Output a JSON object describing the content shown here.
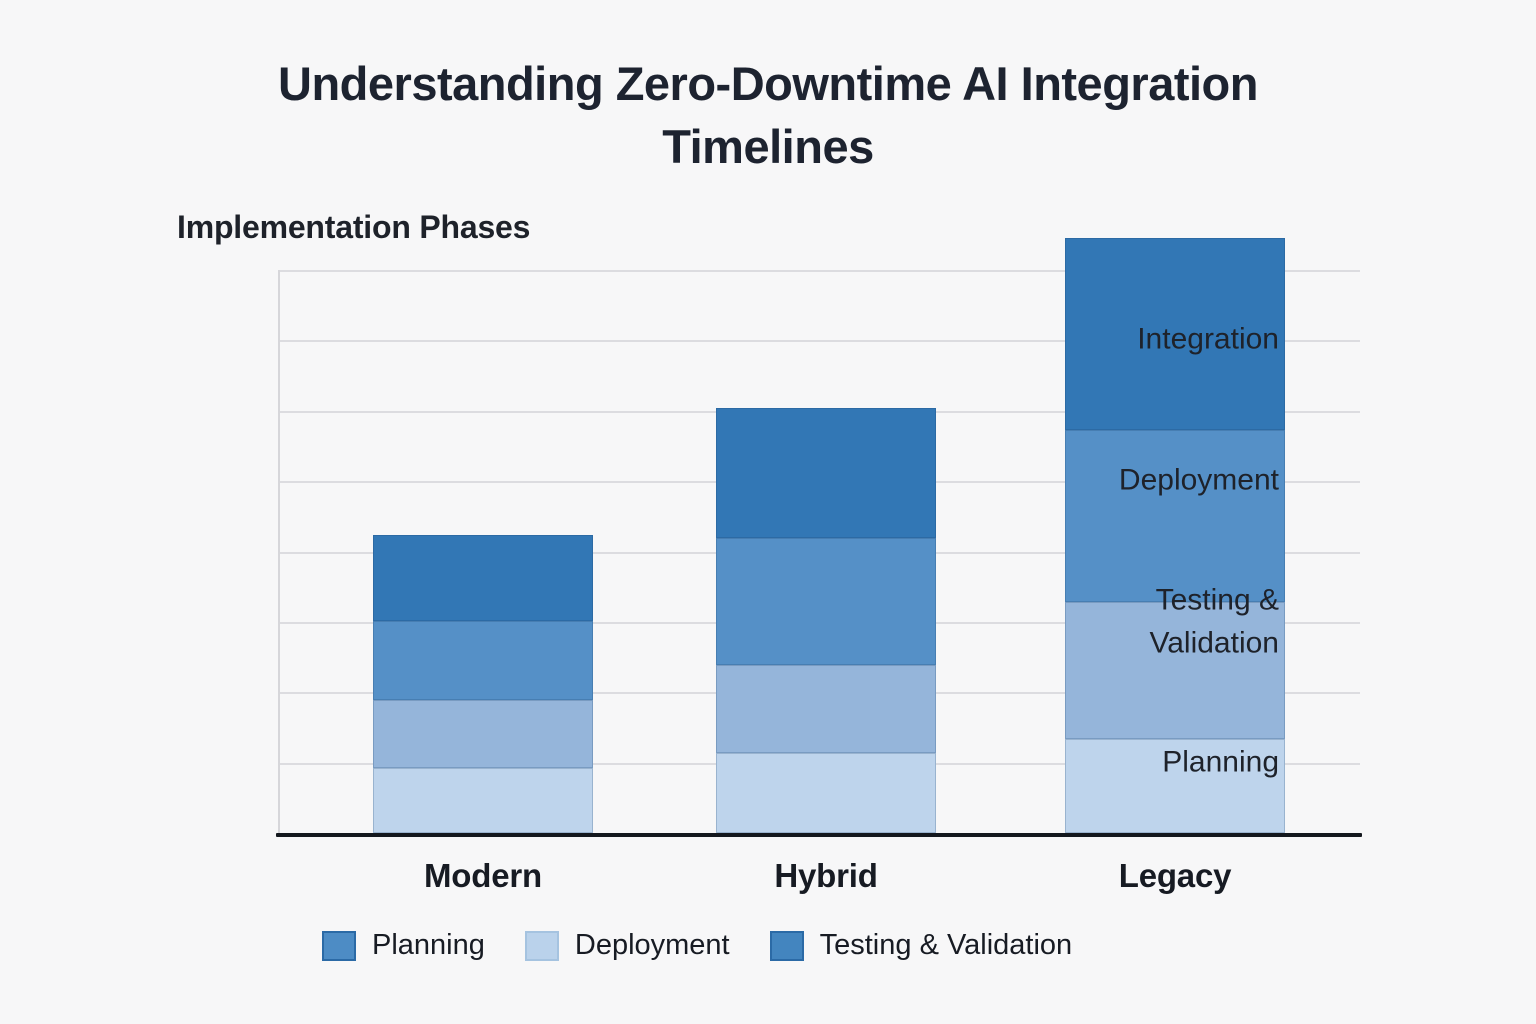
{
  "chart_data": {
    "type": "bar",
    "subtype": "stacked",
    "title": "Understanding Zero-Downtime AI Integration Timelines",
    "title_lines": [
      "Understanding Zero-Downtime AI Integration",
      "Timelines"
    ],
    "y_axis_title": "Implementation Phases",
    "categories": [
      "Modern",
      "Hybrid",
      "Legacy"
    ],
    "y_tick_labels": [
      "Integration",
      "Deployment",
      "Testing & Validation",
      "Planning"
    ],
    "grid": true,
    "gridline_count": 8,
    "ylim_units": [
      0,
      8
    ],
    "series": [
      {
        "name": "segment-bottom-lightest",
        "color": "#bed4ec",
        "values": [
          0.92,
          1.14,
          1.33
        ]
      },
      {
        "name": "segment-lower-middle-light",
        "color": "#95b5da",
        "values": [
          0.97,
          1.25,
          1.95
        ]
      },
      {
        "name": "segment-upper-middle-medium",
        "color": "#5590c7",
        "values": [
          1.12,
          1.8,
          2.44
        ]
      },
      {
        "name": "segment-top-dark",
        "color": "#3277b5",
        "values": [
          1.22,
          1.85,
          2.73
        ]
      }
    ],
    "bar_totals_units": {
      "Modern": 4.23,
      "Hybrid": 6.04,
      "Legacy": 8.45
    },
    "legend_position": "bottom",
    "legend": [
      {
        "label": "Planning",
        "color": "#4d8cc5",
        "border": "#2b6aa6"
      },
      {
        "label": "Deployment",
        "color": "#bad2eb",
        "border": "#a5c3e0"
      },
      {
        "label": "Testing & Validation",
        "color": "#4385bf",
        "border": "#2b6aa6"
      }
    ],
    "colors": {
      "background": "#f7f7f8",
      "gridline": "#dcdce0",
      "axis_line": "#14181e",
      "text": "#1d2330"
    }
  }
}
